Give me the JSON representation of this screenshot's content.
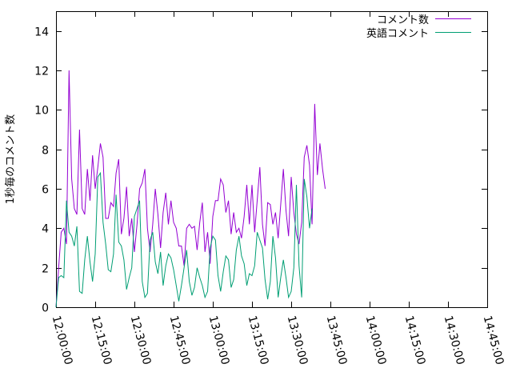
{
  "chart_data": {
    "type": "line",
    "title": "",
    "xlabel": "",
    "ylabel": "1秒毎のコメント数",
    "ylim": [
      0,
      15
    ],
    "yticks": [
      "0",
      "2",
      "4",
      "6",
      "8",
      "10",
      "12",
      "14"
    ],
    "xticks": [
      "12:00:00",
      "12:15:00",
      "12:30:00",
      "12:45:00",
      "13:00:00",
      "13:15:00",
      "13:30:00",
      "13:45:00",
      "14:00:00",
      "14:15:00",
      "14:30:00",
      "14:45:00"
    ],
    "xlim_minutes": [
      0,
      165
    ],
    "x_start": "12:00:00",
    "x_step_seconds": 60,
    "grid": false,
    "legend_position": "top-right",
    "series": [
      {
        "name": "コメント数",
        "color": "#9400d3",
        "values": [
          0,
          2,
          3.8,
          4,
          3.2,
          12,
          6.5,
          5,
          4.7,
          9,
          5,
          4.7,
          7,
          5.4,
          7.7,
          6,
          7.1,
          8.3,
          7.6,
          4.5,
          4.5,
          5.3,
          5.1,
          6.8,
          7.5,
          3.7,
          4.5,
          6.1,
          3.6,
          4.5,
          2.8,
          4.2,
          6,
          6.3,
          7,
          4,
          2.8,
          4.2,
          6,
          4.7,
          3,
          4.8,
          5.8,
          4.2,
          5.4,
          4.3,
          4,
          3.1,
          3.1,
          2.1,
          4,
          4.2,
          4,
          4.1,
          2.9,
          4.3,
          5.3,
          2.8,
          3.8,
          2.2,
          4.6,
          5.4,
          5.4,
          6.5,
          6.2,
          4.8,
          5.4,
          3.7,
          4.8,
          3.8,
          4,
          3.5,
          4.6,
          6.2,
          4.2,
          6.2,
          3.8,
          5.4,
          7.1,
          4.2,
          3.1,
          5.3,
          5.2,
          4.2,
          4.8,
          3.5,
          5.2,
          7,
          4.9,
          3.6,
          6.6,
          4.8,
          3.7,
          3.2,
          4.3,
          7.6,
          8.2,
          7.2,
          4.2,
          10.3,
          6.7,
          8.3,
          7,
          6
        ],
        "area": false
      },
      {
        "name": "英語コメント",
        "color": "#009e73",
        "values": [
          0,
          1.5,
          1.6,
          1.5,
          5.4,
          3.8,
          3.6,
          3.1,
          4.1,
          0.8,
          0.7,
          2.4,
          3.6,
          2.3,
          1.3,
          2.7,
          6.6,
          6.8,
          4.3,
          3.2,
          1.9,
          1.8,
          2.7,
          5.7,
          3.3,
          3.1,
          2.4,
          0.9,
          1.5,
          2,
          4.6,
          5,
          5.4,
          1.3,
          0.5,
          0.7,
          3.4,
          3.8,
          2.3,
          1.7,
          2.8,
          1.1,
          2.1,
          2.7,
          2.5,
          1.9,
          1.1,
          0.3,
          1.1,
          2,
          2.9,
          1.3,
          0.6,
          1,
          2,
          1.5,
          1.1,
          0.5,
          0.8,
          3,
          3.6,
          3.4,
          1.6,
          0.8,
          1.8,
          2.6,
          2.4,
          1,
          1.4,
          2.9,
          3.6,
          2.6,
          2.2,
          1.1,
          1.7,
          1.6,
          2.1,
          3.8,
          3.4,
          3,
          1.4,
          0.4,
          1.3,
          3.6,
          2.5,
          0.5,
          1.5,
          2.4,
          1.5,
          0.5,
          0.8,
          2,
          6.2,
          2.1,
          0.5,
          6.5,
          5.6,
          4,
          5
        ],
        "area": false
      }
    ]
  }
}
